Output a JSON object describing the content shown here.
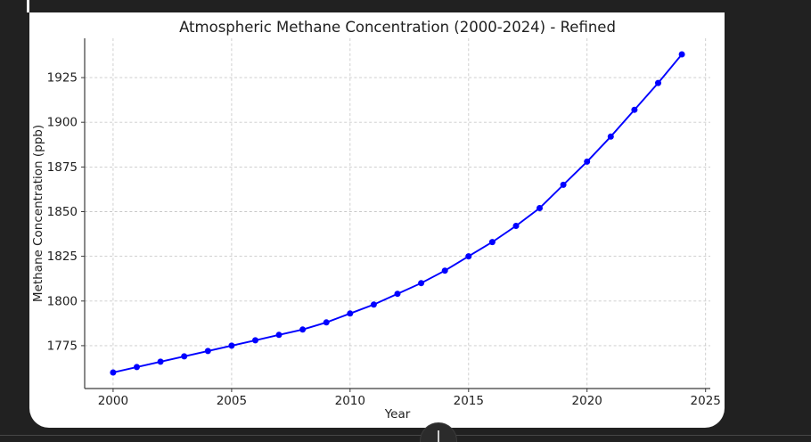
{
  "colors": {
    "surround": "#212121",
    "card_background": "#ffffff",
    "line": "#0000ff",
    "grid": "#c9c9c9",
    "divider": "#474747",
    "handle_background": "#2b2b2b",
    "handle_glyph": "#cfcfcf"
  },
  "chart_data": {
    "type": "line",
    "title": "Atmospheric Methane Concentration (2000-2024) - Refined",
    "xlabel": "Year",
    "ylabel": "Methane Concentration (ppb)",
    "x": [
      2000,
      2001,
      2002,
      2003,
      2004,
      2005,
      2006,
      2007,
      2008,
      2009,
      2010,
      2011,
      2012,
      2013,
      2014,
      2015,
      2016,
      2017,
      2018,
      2019,
      2020,
      2021,
      2022,
      2023,
      2024
    ],
    "values": [
      1760,
      1763,
      1766,
      1769,
      1772,
      1775,
      1778,
      1781,
      1784,
      1788,
      1793,
      1798,
      1804,
      1810,
      1817,
      1825,
      1833,
      1842,
      1852,
      1865,
      1878,
      1892,
      1907,
      1922,
      1938
    ],
    "series_name": "Methane Concentration",
    "xticks": [
      2000,
      2005,
      2010,
      2015,
      2020,
      2025
    ],
    "yticks": [
      1775,
      1800,
      1825,
      1850,
      1875,
      1900,
      1925
    ],
    "xlim": [
      1998.8,
      2025.2
    ],
    "ylim": [
      1751,
      1947
    ],
    "grid": true,
    "legend_position": "none",
    "line_color": "#0000ff",
    "marker": "o",
    "marker_radius": 3.5,
    "line_width": 1.9
  }
}
